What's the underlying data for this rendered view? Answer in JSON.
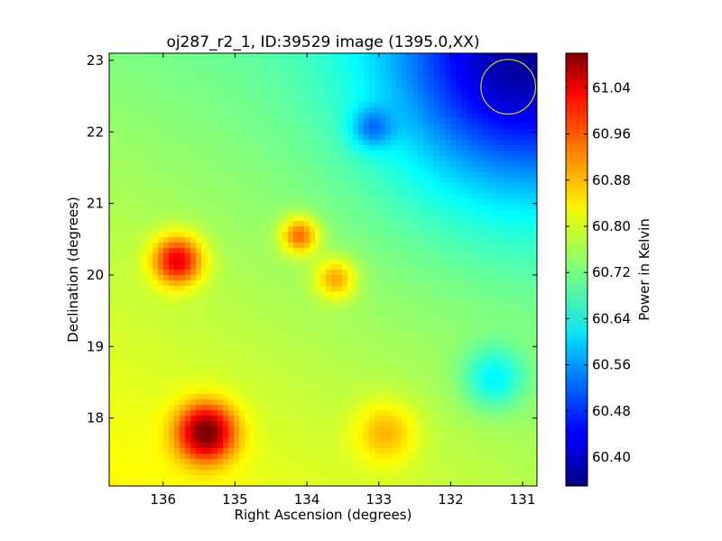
{
  "chart_data": {
    "type": "heatmap",
    "title": "oj287_r2_1, ID:39529 image (1395.0,XX)",
    "xlabel": "Right Ascension (degrees)",
    "ylabel": "Declination (degrees)",
    "xlim": [
      136.75,
      130.8
    ],
    "ylim": [
      17.05,
      23.1
    ],
    "x_ticks": [
      {
        "value": 136,
        "label": "136"
      },
      {
        "value": 135,
        "label": "135"
      },
      {
        "value": 134,
        "label": "134"
      },
      {
        "value": 133,
        "label": "133"
      },
      {
        "value": 132,
        "label": "132"
      },
      {
        "value": 131,
        "label": "131"
      }
    ],
    "y_ticks": [
      {
        "value": 18,
        "label": "18"
      },
      {
        "value": 19,
        "label": "19"
      },
      {
        "value": 20,
        "label": "20"
      },
      {
        "value": 21,
        "label": "21"
      },
      {
        "value": 22,
        "label": "22"
      },
      {
        "value": 23,
        "label": "23"
      }
    ],
    "colorbar": {
      "label": "Power in Kelvin",
      "range": [
        60.35,
        61.1
      ],
      "colormap": "jet",
      "ticks": [
        {
          "value": 60.4,
          "label": "60.40"
        },
        {
          "value": 60.48,
          "label": "60.48"
        },
        {
          "value": 60.56,
          "label": "60.56"
        },
        {
          "value": 60.64,
          "label": "60.64"
        },
        {
          "value": 60.72,
          "label": "60.72"
        },
        {
          "value": 60.8,
          "label": "60.80"
        },
        {
          "value": 60.88,
          "label": "60.88"
        },
        {
          "value": 60.96,
          "label": "60.96"
        },
        {
          "value": 61.04,
          "label": "61.04"
        }
      ]
    },
    "background_level": 60.74,
    "gradient": {
      "corner_low_ra": 131.0,
      "corner_low_dec": 23.0,
      "amplitude": -0.3,
      "extent_deg": 2.6
    },
    "features": [
      {
        "ra": 135.4,
        "dec": 17.8,
        "peak": 61.06,
        "sigma": 0.28
      },
      {
        "ra": 135.8,
        "dec": 20.2,
        "peak": 61.0,
        "sigma": 0.24
      },
      {
        "ra": 134.1,
        "dec": 20.55,
        "peak": 60.93,
        "sigma": 0.18
      },
      {
        "ra": 133.6,
        "dec": 19.95,
        "peak": 60.88,
        "sigma": 0.2
      },
      {
        "ra": 133.1,
        "dec": 22.05,
        "peak": 60.62,
        "sigma": 0.2
      },
      {
        "ra": 132.9,
        "dec": 17.8,
        "peak": 60.84,
        "sigma": 0.3
      },
      {
        "ra": 131.4,
        "dec": 18.55,
        "peak": 60.62,
        "sigma": 0.3
      }
    ],
    "beam_circle": {
      "ra": 131.2,
      "dec": 22.63,
      "radius_deg": 0.38,
      "color": "#cccc33"
    },
    "grid": false,
    "legend": "none"
  }
}
